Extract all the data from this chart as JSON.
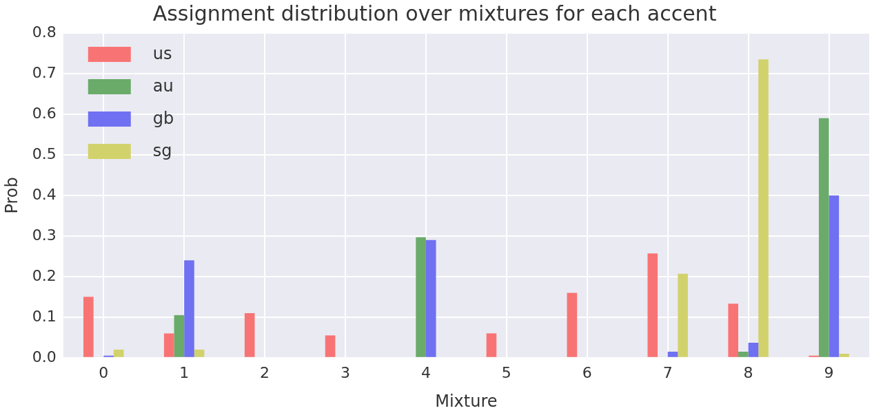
{
  "chart_data": {
    "type": "bar",
    "title": "Assignment distribution over mixtures for each accent",
    "xlabel": "Mixture",
    "ylabel": "Prob",
    "categories": [
      "0",
      "1",
      "2",
      "3",
      "4",
      "5",
      "6",
      "7",
      "8",
      "9"
    ],
    "series": [
      {
        "name": "us",
        "color": "#f87474",
        "values": [
          0.15,
          0.06,
          0.11,
          0.055,
          0,
          0.06,
          0.16,
          0.257,
          0.133,
          0.005
        ]
      },
      {
        "name": "au",
        "color": "#6aab6a",
        "values": [
          0,
          0.105,
          0,
          0,
          0.297,
          0,
          0,
          0,
          0.015,
          0.59
        ]
      },
      {
        "name": "gb",
        "color": "#7070f2",
        "values": [
          0.005,
          0.24,
          0,
          0,
          0.29,
          0,
          0,
          0.015,
          0.037,
          0.4
        ]
      },
      {
        "name": "sg",
        "color": "#d2d26c",
        "values": [
          0.02,
          0.02,
          0,
          0,
          0,
          0,
          0,
          0.207,
          0.735,
          0.01
        ]
      }
    ],
    "ylim": [
      0,
      0.8
    ],
    "yticks": [
      {
        "value": 0,
        "label": "0.0"
      },
      {
        "value": 0.1,
        "label": "0.1"
      },
      {
        "value": 0.2,
        "label": "0.2"
      },
      {
        "value": 0.3,
        "label": "0.3"
      },
      {
        "value": 0.4,
        "label": "0.4"
      },
      {
        "value": 0.5,
        "label": "0.5"
      },
      {
        "value": 0.6,
        "label": "0.6"
      },
      {
        "value": 0.7,
        "label": "0.7"
      },
      {
        "value": 0.8,
        "label": "0.8"
      }
    ],
    "grid": true,
    "legend": "top left"
  }
}
